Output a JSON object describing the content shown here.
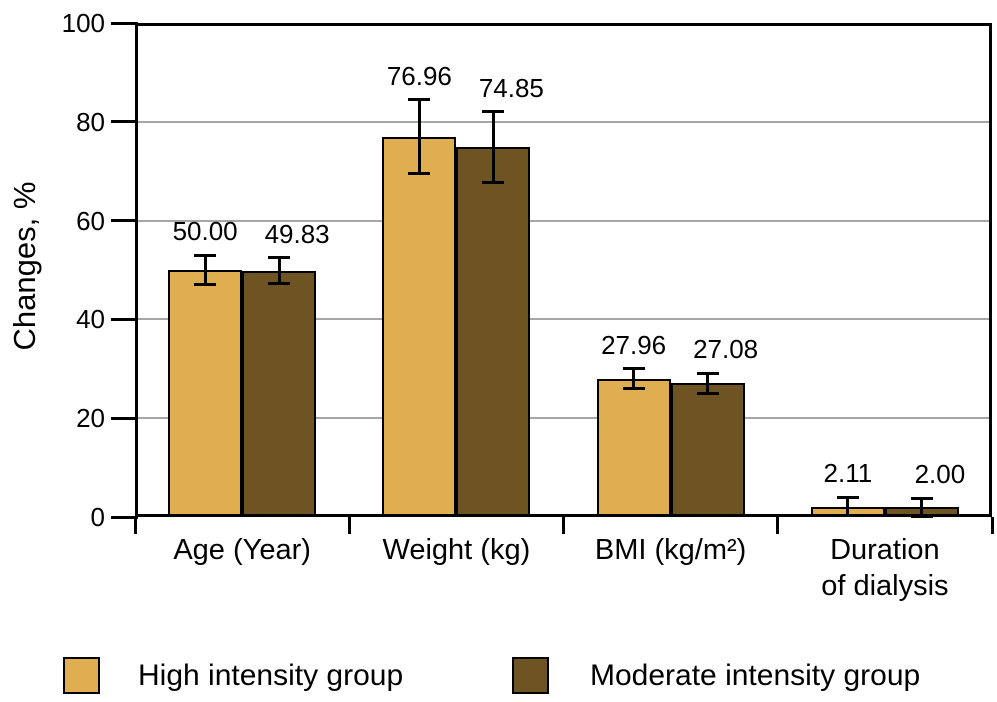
{
  "chart_data": {
    "type": "bar",
    "title": "",
    "ylabel": "Changes, %",
    "xlabel": "",
    "ylim": [
      0,
      100
    ],
    "yticks": [
      0,
      20,
      40,
      60,
      80,
      100
    ],
    "gridlines": [
      20,
      40,
      60,
      80
    ],
    "grid": "horizontal",
    "legend_position": "bottom",
    "categories": [
      "Age (Year)",
      "Weight (kg)",
      "BMI (kg/m²)",
      "Duration\nof dialysis"
    ],
    "series": [
      {
        "name": "High intensity group",
        "color": "#DFAE50",
        "values": [
          50.0,
          76.96,
          27.96,
          2.11
        ],
        "value_labels": [
          "50.00",
          "76.96",
          "27.96",
          "2.11"
        ],
        "errors": [
          3.0,
          7.5,
          2.0,
          1.9
        ]
      },
      {
        "name": "Moderate intensity group",
        "color": "#6E5422",
        "values": [
          49.83,
          74.85,
          27.08,
          2.0
        ],
        "value_labels": [
          "49.83",
          "74.85",
          "27.08",
          "2.00"
        ],
        "errors": [
          2.6,
          7.2,
          2.0,
          1.8
        ]
      }
    ]
  },
  "colors": {
    "grid": "#A6A6A6",
    "axis": "#000000",
    "bar_border": "#000000",
    "text": "#000000",
    "background": "#FFFFFF"
  }
}
